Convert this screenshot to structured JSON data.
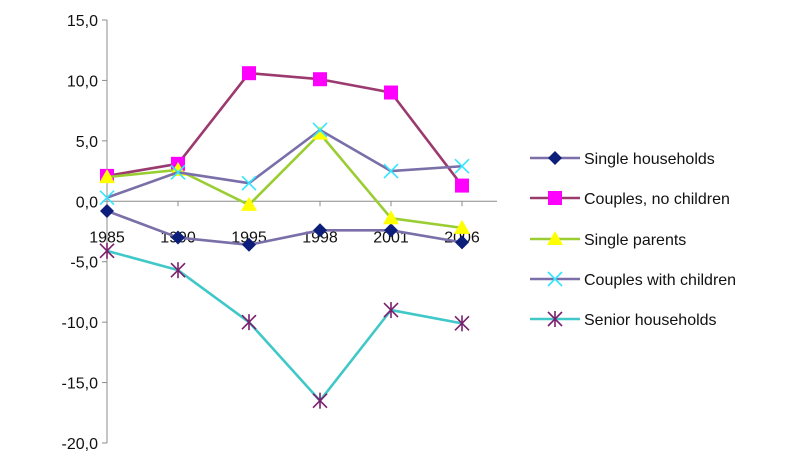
{
  "chart_data": {
    "type": "line",
    "categories": [
      "1985",
      "1990",
      "1995",
      "1998",
      "2001",
      "2006"
    ],
    "ylim": [
      -20,
      15
    ],
    "yticks": [
      15,
      10,
      5,
      0,
      -5,
      -10,
      -15,
      -20
    ],
    "ytick_labels": [
      "15,0",
      "10,0",
      "5,0",
      "0,0",
      "-5,0",
      "-10,0",
      "-15,0",
      "-20,0"
    ],
    "grid": false,
    "legend_position": "right",
    "series": [
      {
        "name": "Single households",
        "values": [
          -0.8,
          -3.0,
          -3.6,
          -2.4,
          -2.4,
          -3.4
        ],
        "color": "#7a6fa8",
        "marker": "diamond",
        "marker_color": "#0c1e7a"
      },
      {
        "name": "Couples, no children",
        "values": [
          2.1,
          3.1,
          10.6,
          10.1,
          9.0,
          1.3
        ],
        "color": "#9b3a6e",
        "marker": "square",
        "marker_color": "#ff00ff"
      },
      {
        "name": "Single parents",
        "values": [
          2.0,
          2.6,
          -0.3,
          5.6,
          -1.4,
          -2.2
        ],
        "color": "#9acd32",
        "marker": "triangle",
        "marker_color": "#ffff00"
      },
      {
        "name": "Couples with children",
        "values": [
          0.3,
          2.4,
          1.5,
          5.9,
          2.5,
          2.9
        ],
        "color": "#7a6fa8",
        "marker": "x",
        "marker_color": "#33e6ff"
      },
      {
        "name": "Senior households",
        "values": [
          -4.1,
          -5.7,
          -10.0,
          -16.5,
          -9.0,
          -10.1
        ],
        "color": "#40c8c8",
        "marker": "star",
        "marker_color": "#7a1f6e"
      }
    ]
  }
}
